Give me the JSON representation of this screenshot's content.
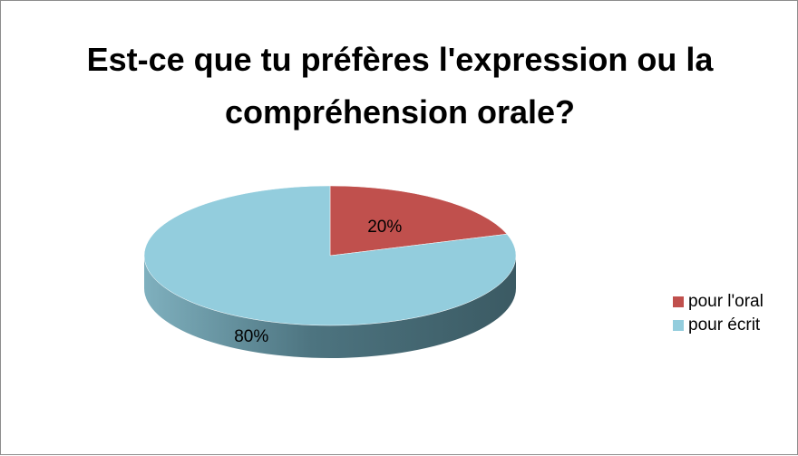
{
  "chart_data": {
    "type": "pie",
    "title": "Est-ce que tu préfères l'expression ou la compréhension orale?",
    "categories": [
      "pour l'oral",
      "pour écrit"
    ],
    "values": [
      20,
      80
    ],
    "value_labels": [
      "20%",
      "80%"
    ],
    "colors": [
      "#c0504d",
      "#93cddd"
    ],
    "legend": "right"
  }
}
